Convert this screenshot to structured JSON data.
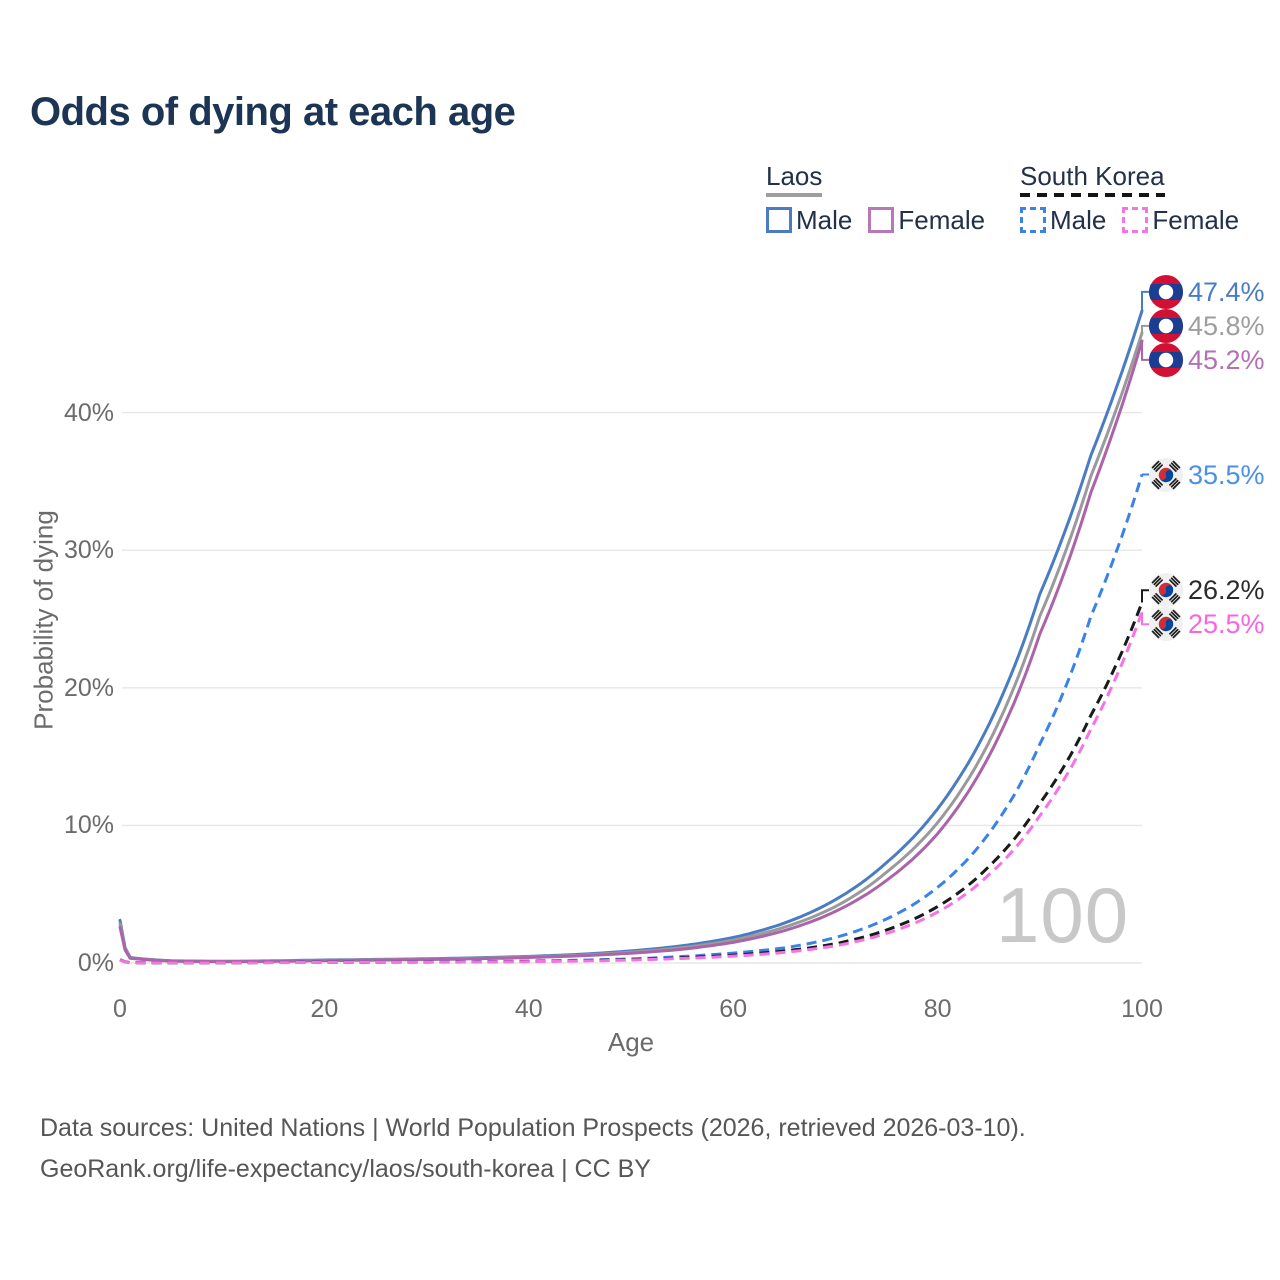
{
  "title": "Odds of dying at each age",
  "watermark": "100",
  "legend": {
    "groups": [
      {
        "label": "Laos",
        "underline_style": "solid",
        "underline_color": "#9e9e9e",
        "items": [
          {
            "label": "Male",
            "color": "#4a7cc2",
            "dash": "solid"
          },
          {
            "label": "Female",
            "color": "#b877b8",
            "dash": "solid"
          }
        ]
      },
      {
        "label": "South Korea",
        "underline_style": "dashed",
        "underline_color": "#141414",
        "items": [
          {
            "label": "Male",
            "color": "#3b82e8",
            "dash": "dashed"
          },
          {
            "label": "Female",
            "color": "#f673e6",
            "dash": "dashed"
          }
        ]
      }
    ]
  },
  "chart_data": {
    "type": "line",
    "title": "Odds of dying at each age",
    "xlabel": "Age",
    "ylabel": "Probability of dying",
    "xlim": [
      0,
      100
    ],
    "ylim_pct": [
      0,
      48
    ],
    "grid": "horizontal",
    "x_ticks": [
      {
        "label": "0",
        "value": 0
      },
      {
        "label": "20",
        "value": 20
      },
      {
        "label": "40",
        "value": 40
      },
      {
        "label": "60",
        "value": 60
      },
      {
        "label": "80",
        "value": 80
      },
      {
        "label": "100",
        "value": 100
      }
    ],
    "y_ticks": [
      {
        "label": "0%",
        "value": 0
      },
      {
        "label": "10%",
        "value": 10
      },
      {
        "label": "20%",
        "value": 20
      },
      {
        "label": "30%",
        "value": 30
      },
      {
        "label": "40%",
        "value": 40
      }
    ],
    "series": [
      {
        "name": "Laos Male",
        "country": "Laos",
        "sex": "Male",
        "color": "#4a7cc2",
        "label_color": "#4a7cc2",
        "dash": "solid",
        "flag": "laos",
        "end_label": "47.4%",
        "end_value_pct": 47.4,
        "points": [
          [
            0,
            3.1
          ],
          [
            1,
            0.4
          ],
          [
            5,
            0.16
          ],
          [
            10,
            0.12
          ],
          [
            15,
            0.16
          ],
          [
            20,
            0.22
          ],
          [
            25,
            0.26
          ],
          [
            30,
            0.31
          ],
          [
            35,
            0.38
          ],
          [
            40,
            0.48
          ],
          [
            45,
            0.63
          ],
          [
            50,
            0.88
          ],
          [
            55,
            1.25
          ],
          [
            60,
            1.85
          ],
          [
            65,
            2.9
          ],
          [
            70,
            4.6
          ],
          [
            75,
            7.3
          ],
          [
            80,
            11.2
          ],
          [
            85,
            17.3
          ],
          [
            90,
            26.8
          ],
          [
            95,
            36.9
          ],
          [
            100,
            47.4
          ]
        ]
      },
      {
        "name": "Laos Both sexes",
        "country": "Laos",
        "sex": "Both",
        "color": "#9a9a9a",
        "label_color": "#9e9e9e",
        "dash": "solid",
        "flag": "laos",
        "end_label": "45.8%",
        "end_value_pct": 45.8,
        "points": [
          [
            0,
            2.85
          ],
          [
            1,
            0.37
          ],
          [
            5,
            0.15
          ],
          [
            10,
            0.11
          ],
          [
            15,
            0.14
          ],
          [
            20,
            0.2
          ],
          [
            25,
            0.24
          ],
          [
            30,
            0.28
          ],
          [
            35,
            0.35
          ],
          [
            40,
            0.44
          ],
          [
            45,
            0.57
          ],
          [
            50,
            0.79
          ],
          [
            55,
            1.12
          ],
          [
            60,
            1.66
          ],
          [
            65,
            2.6
          ],
          [
            70,
            4.1
          ],
          [
            75,
            6.6
          ],
          [
            80,
            10.2
          ],
          [
            85,
            16.0
          ],
          [
            90,
            25.2
          ],
          [
            95,
            35.4
          ],
          [
            100,
            45.8
          ]
        ]
      },
      {
        "name": "Laos Female",
        "country": "Laos",
        "sex": "Female",
        "color": "#ab63a9",
        "label_color": "#b56fb5",
        "dash": "solid",
        "flag": "laos",
        "end_label": "45.2%",
        "end_value_pct": 45.2,
        "points": [
          [
            0,
            2.6
          ],
          [
            1,
            0.34
          ],
          [
            5,
            0.14
          ],
          [
            10,
            0.1
          ],
          [
            15,
            0.12
          ],
          [
            20,
            0.17
          ],
          [
            25,
            0.21
          ],
          [
            30,
            0.25
          ],
          [
            35,
            0.31
          ],
          [
            40,
            0.4
          ],
          [
            45,
            0.52
          ],
          [
            50,
            0.71
          ],
          [
            55,
            1.0
          ],
          [
            60,
            1.5
          ],
          [
            65,
            2.35
          ],
          [
            70,
            3.75
          ],
          [
            75,
            6.0
          ],
          [
            80,
            9.4
          ],
          [
            85,
            15.0
          ],
          [
            90,
            23.9
          ],
          [
            95,
            34.2
          ],
          [
            100,
            45.2
          ]
        ]
      },
      {
        "name": "South Korea Male",
        "country": "South Korea",
        "sex": "Male",
        "color": "#3b82e8",
        "label_color": "#4a90e9",
        "dash": "dashed",
        "flag": "south-korea",
        "end_label": "35.5%",
        "end_value_pct": 35.5,
        "points": [
          [
            0,
            0.25
          ],
          [
            1,
            0.03
          ],
          [
            5,
            0.02
          ],
          [
            10,
            0.02
          ],
          [
            15,
            0.04
          ],
          [
            20,
            0.06
          ],
          [
            25,
            0.07
          ],
          [
            30,
            0.08
          ],
          [
            35,
            0.1
          ],
          [
            40,
            0.14
          ],
          [
            45,
            0.2
          ],
          [
            50,
            0.3
          ],
          [
            55,
            0.47
          ],
          [
            60,
            0.72
          ],
          [
            65,
            1.1
          ],
          [
            70,
            1.85
          ],
          [
            75,
            3.2
          ],
          [
            80,
            5.5
          ],
          [
            85,
            9.4
          ],
          [
            90,
            15.9
          ],
          [
            95,
            25.2
          ],
          [
            100,
            35.5
          ]
        ]
      },
      {
        "name": "South Korea Both sexes",
        "country": "South Korea",
        "sex": "Both",
        "color": "#1a1a1a",
        "label_color": "#2b2b2b",
        "dash": "dashed",
        "flag": "south-korea",
        "end_label": "26.2%",
        "end_value_pct": 26.2,
        "points": [
          [
            0,
            0.22
          ],
          [
            1,
            0.027
          ],
          [
            5,
            0.018
          ],
          [
            10,
            0.018
          ],
          [
            15,
            0.033
          ],
          [
            20,
            0.05
          ],
          [
            25,
            0.058
          ],
          [
            30,
            0.068
          ],
          [
            35,
            0.085
          ],
          [
            40,
            0.115
          ],
          [
            45,
            0.165
          ],
          [
            50,
            0.245
          ],
          [
            55,
            0.375
          ],
          [
            60,
            0.57
          ],
          [
            65,
            0.87
          ],
          [
            70,
            1.4
          ],
          [
            75,
            2.4
          ],
          [
            80,
            4.1
          ],
          [
            85,
            7.0
          ],
          [
            90,
            11.6
          ],
          [
            95,
            18.0
          ],
          [
            100,
            26.2
          ]
        ]
      },
      {
        "name": "South Korea Female",
        "country": "South Korea",
        "sex": "Female",
        "color": "#f673e6",
        "label_color": "#f765df",
        "dash": "dashed",
        "flag": "south-korea",
        "end_label": "25.5%",
        "end_value_pct": 25.5,
        "points": [
          [
            0,
            0.2
          ],
          [
            1,
            0.024
          ],
          [
            5,
            0.016
          ],
          [
            10,
            0.016
          ],
          [
            15,
            0.028
          ],
          [
            20,
            0.042
          ],
          [
            25,
            0.05
          ],
          [
            30,
            0.06
          ],
          [
            35,
            0.075
          ],
          [
            40,
            0.1
          ],
          [
            45,
            0.145
          ],
          [
            50,
            0.215
          ],
          [
            55,
            0.33
          ],
          [
            60,
            0.5
          ],
          [
            65,
            0.77
          ],
          [
            70,
            1.25
          ],
          [
            75,
            2.15
          ],
          [
            80,
            3.7
          ],
          [
            85,
            6.4
          ],
          [
            90,
            10.7
          ],
          [
            95,
            17.0
          ],
          [
            100,
            25.5
          ]
        ]
      }
    ]
  },
  "footer": {
    "line1": "Data sources: United Nations | World Population Prospects (2026, retrieved 2026-03-10).",
    "line2": "GeoRank.org/life-expectancy/laos/south-korea | CC BY"
  }
}
